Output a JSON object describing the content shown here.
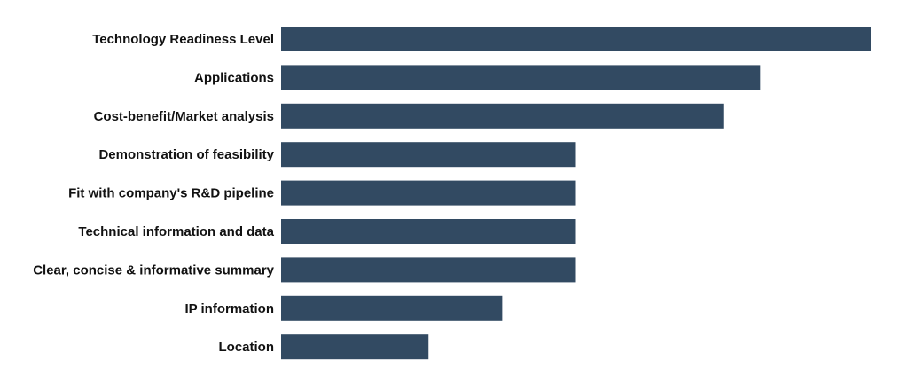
{
  "chart_data": {
    "type": "bar",
    "orientation": "horizontal",
    "categories": [
      "Technology Readiness Level",
      "Applications",
      "Cost-benefit/Market analysis",
      "Demonstration of feasibility",
      "Fit with company's R&D pipeline",
      "Technical information and data",
      "Clear, concise & informative summary",
      "IP information",
      "Location"
    ],
    "values": [
      16,
      13,
      12,
      8,
      8,
      8,
      8,
      6,
      4
    ],
    "color": "#324a62"
  }
}
